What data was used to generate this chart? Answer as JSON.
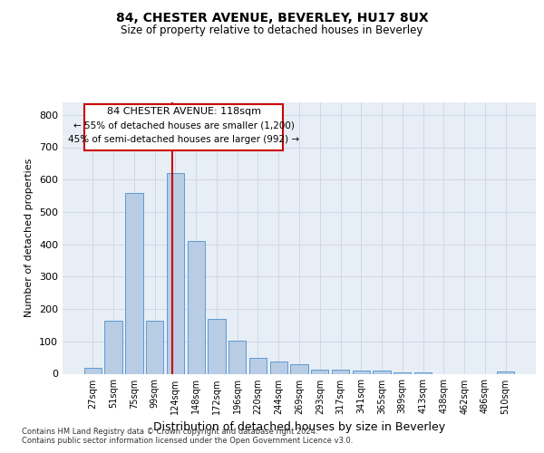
{
  "title1": "84, CHESTER AVENUE, BEVERLEY, HU17 8UX",
  "title2": "Size of property relative to detached houses in Beverley",
  "xlabel": "Distribution of detached houses by size in Beverley",
  "ylabel": "Number of detached properties",
  "bar_labels": [
    "27sqm",
    "51sqm",
    "75sqm",
    "99sqm",
    "124sqm",
    "148sqm",
    "172sqm",
    "196sqm",
    "220sqm",
    "244sqm",
    "269sqm",
    "293sqm",
    "317sqm",
    "341sqm",
    "365sqm",
    "389sqm",
    "413sqm",
    "438sqm",
    "462sqm",
    "486sqm",
    "510sqm"
  ],
  "bar_values": [
    18,
    165,
    560,
    165,
    620,
    410,
    170,
    103,
    50,
    38,
    30,
    14,
    13,
    10,
    10,
    3,
    3,
    0,
    0,
    0,
    7
  ],
  "bar_color": "#b8cce4",
  "bar_edge_color": "#5b9bd5",
  "grid_color": "#d0d8e8",
  "bg_color": "#e8eef5",
  "marker_label": "84 CHESTER AVENUE: 118sqm",
  "annotation_line1": "← 55% of detached houses are smaller (1,200)",
  "annotation_line2": "45% of semi-detached houses are larger (992) →",
  "vline_color": "#cc0000",
  "box_edge_color": "#cc0000",
  "footnote1": "Contains HM Land Registry data © Crown copyright and database right 2024.",
  "footnote2": "Contains public sector information licensed under the Open Government Licence v3.0.",
  "ylim": [
    0,
    840
  ],
  "yticks": [
    0,
    100,
    200,
    300,
    400,
    500,
    600,
    700,
    800
  ],
  "vline_x": 3.85
}
